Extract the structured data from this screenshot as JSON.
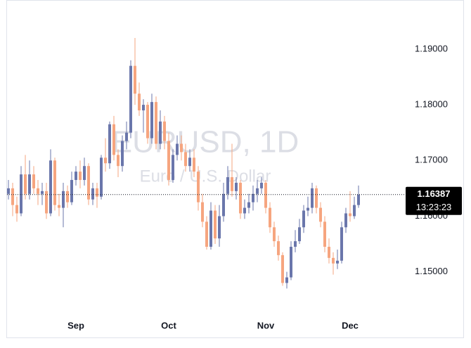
{
  "chart_data": {
    "type": "candlestick",
    "watermark": {
      "symbol": "EURUSD, 1D",
      "description": "Euro / U.S. Dollar"
    },
    "categories": [
      null,
      null,
      null,
      null,
      null,
      null,
      null,
      null,
      null,
      null,
      null,
      null,
      null,
      null,
      null,
      null,
      "Sep",
      null,
      null,
      null,
      null,
      null,
      null,
      null,
      null,
      null,
      null,
      null,
      null,
      null,
      null,
      null,
      null,
      null,
      null,
      null,
      null,
      null,
      "Oct",
      null,
      null,
      null,
      null,
      null,
      null,
      null,
      null,
      null,
      null,
      null,
      null,
      null,
      null,
      null,
      null,
      null,
      null,
      null,
      null,
      null,
      null,
      "Nov",
      null,
      null,
      null,
      null,
      null,
      null,
      null,
      null,
      null,
      null,
      null,
      null,
      null,
      null,
      null,
      null,
      null,
      null,
      null,
      "Dec",
      null,
      null
    ],
    "open": [
      1.164,
      1.165,
      1.162,
      1.1605,
      1.1675,
      1.164,
      1.1675,
      1.165,
      1.164,
      1.1645,
      1.1605,
      1.17,
      1.162,
      1.1615,
      1.1645,
      1.1625,
      1.1665,
      1.168,
      1.1665,
      1.169,
      1.163,
      1.165,
      1.1635,
      1.1705,
      1.1695,
      1.1765,
      1.171,
      1.169,
      1.1735,
      1.175,
      1.187,
      1.182,
      1.179,
      1.18,
      1.174,
      1.1805,
      1.173,
      1.177,
      1.1735,
      1.1665,
      1.171,
      1.173,
      1.1715,
      1.169,
      1.1705,
      1.168,
      1.1625,
      1.159,
      1.1545,
      1.161,
      1.156,
      1.16,
      1.164,
      1.167,
      1.1645,
      1.166,
      1.1605,
      1.1615,
      1.1625,
      1.164,
      1.165,
      1.166,
      1.1615,
      1.158,
      1.1555,
      1.153,
      1.148,
      1.149,
      1.1545,
      1.1555,
      1.158,
      1.161,
      1.1615,
      1.165,
      1.1615,
      1.159,
      1.1545,
      1.1525,
      1.1515,
      1.152,
      1.158,
      1.1605,
      1.16,
      1.162
    ],
    "high": [
      1.1665,
      1.166,
      1.1635,
      1.169,
      1.171,
      1.17,
      1.169,
      1.1665,
      1.166,
      1.166,
      1.172,
      1.1705,
      1.164,
      1.166,
      1.1655,
      1.168,
      1.169,
      1.17,
      1.1705,
      1.1695,
      1.166,
      1.166,
      1.171,
      1.174,
      1.177,
      1.178,
      1.172,
      1.1745,
      1.177,
      1.188,
      1.192,
      1.184,
      1.181,
      1.1805,
      1.182,
      1.1815,
      1.179,
      1.178,
      1.175,
      1.172,
      1.1745,
      1.1745,
      1.173,
      1.172,
      1.172,
      1.169,
      1.164,
      1.16,
      1.1625,
      1.162,
      1.162,
      1.166,
      1.169,
      1.173,
      1.167,
      1.1665,
      1.163,
      1.164,
      1.1655,
      1.1665,
      1.167,
      1.1665,
      1.1625,
      1.159,
      1.1565,
      1.1535,
      1.15,
      1.1555,
      1.1575,
      1.1595,
      1.162,
      1.1635,
      1.166,
      1.1655,
      1.1625,
      1.16,
      1.156,
      1.1535,
      1.154,
      1.159,
      1.1615,
      1.1645,
      1.1635,
      1.1655
    ],
    "low": [
      1.163,
      1.16,
      1.159,
      1.16,
      1.163,
      1.163,
      1.164,
      1.162,
      1.162,
      1.1595,
      1.16,
      1.161,
      1.16,
      1.158,
      1.1615,
      1.162,
      1.1655,
      1.165,
      1.1655,
      1.162,
      1.162,
      1.1615,
      1.163,
      1.168,
      1.1685,
      1.17,
      1.167,
      1.168,
      1.172,
      1.174,
      1.18,
      1.178,
      1.175,
      1.173,
      1.173,
      1.172,
      1.172,
      1.172,
      1.1655,
      1.166,
      1.17,
      1.17,
      1.168,
      1.168,
      1.167,
      1.161,
      1.158,
      1.154,
      1.154,
      1.155,
      1.1545,
      1.159,
      1.163,
      1.1635,
      1.163,
      1.1595,
      1.1595,
      1.1605,
      1.161,
      1.1625,
      1.164,
      1.1605,
      1.157,
      1.1545,
      1.152,
      1.1475,
      1.147,
      1.1485,
      1.1535,
      1.155,
      1.157,
      1.16,
      1.1605,
      1.1605,
      1.158,
      1.1535,
      1.1515,
      1.1495,
      1.1505,
      1.1515,
      1.157,
      1.159,
      1.1595,
      1.1615
    ],
    "close": [
      1.165,
      1.162,
      1.1605,
      1.1675,
      1.164,
      1.1675,
      1.165,
      1.164,
      1.1645,
      1.1605,
      1.17,
      1.162,
      1.1615,
      1.1645,
      1.1625,
      1.1665,
      1.168,
      1.1665,
      1.169,
      1.163,
      1.165,
      1.1635,
      1.1705,
      1.1695,
      1.1765,
      1.171,
      1.169,
      1.1735,
      1.175,
      1.187,
      1.182,
      1.179,
      1.18,
      1.174,
      1.1805,
      1.173,
      1.177,
      1.1735,
      1.1665,
      1.171,
      1.173,
      1.1715,
      1.169,
      1.1705,
      1.168,
      1.1625,
      1.159,
      1.1545,
      1.161,
      1.156,
      1.16,
      1.164,
      1.167,
      1.1645,
      1.166,
      1.1605,
      1.1615,
      1.1625,
      1.164,
      1.165,
      1.166,
      1.1615,
      1.158,
      1.1555,
      1.153,
      1.148,
      1.149,
      1.1545,
      1.1555,
      1.158,
      1.161,
      1.1615,
      1.165,
      1.1615,
      1.159,
      1.1545,
      1.1525,
      1.1515,
      1.152,
      1.158,
      1.1605,
      1.16,
      1.162,
      1.16387
    ],
    "up_color": "#6a76ab",
    "down_color": "#f6a57f",
    "last_price": 1.16387,
    "countdown": "13:23:23",
    "ylim": [
      1.142,
      1.1963
    ],
    "yticks": [
      {
        "value": 1.15,
        "label": "1.15000"
      },
      {
        "value": 1.16,
        "label": "1.16000"
      },
      {
        "value": 1.17,
        "label": "1.17000"
      },
      {
        "value": 1.18,
        "label": "1.18000"
      },
      {
        "value": 1.19,
        "label": "1.19000"
      }
    ],
    "grid": false
  }
}
